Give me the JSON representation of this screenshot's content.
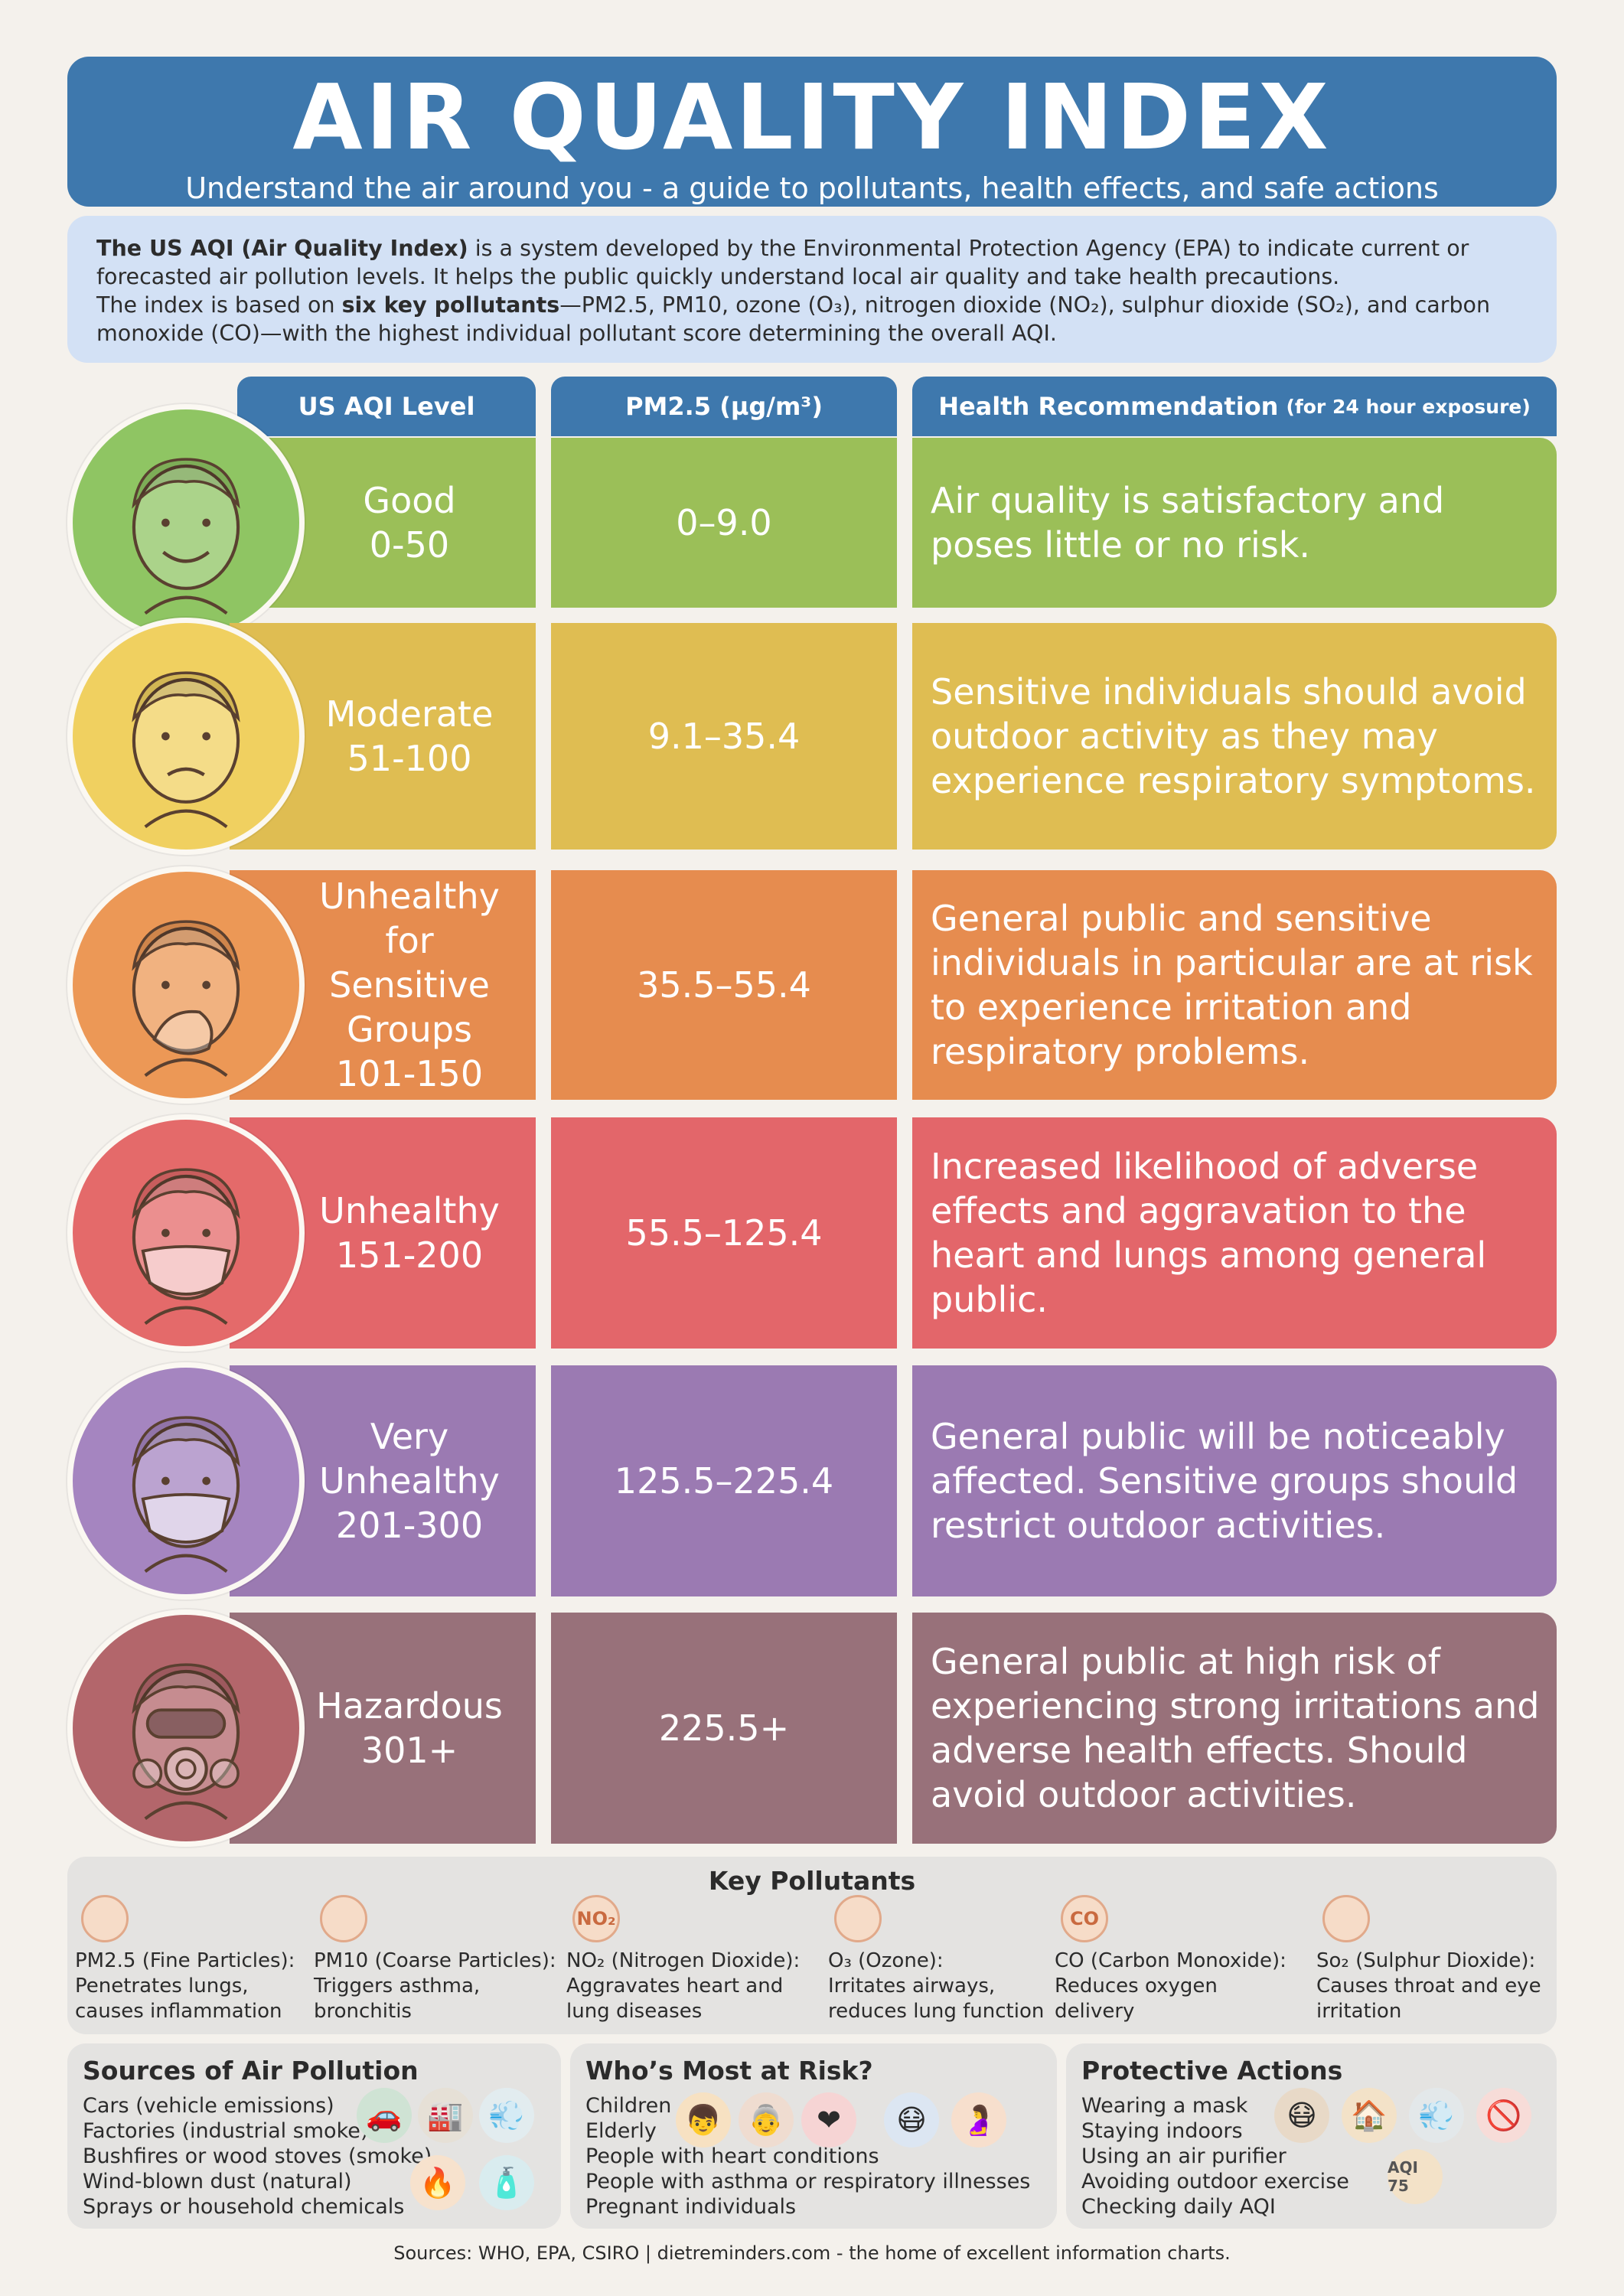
{
  "header": {
    "title": "AIR QUALITY INDEX",
    "subtitle": "Understand the air around you - a guide to pollutants, health effects, and safe actions"
  },
  "intro": {
    "bold1": "The US AQI (Air Quality Index)",
    "text1": " is a system developed by the Environmental Protection Agency (EPA) to indicate current or forecasted air pollution levels. It helps the public quickly understand local air quality and take health precautions.",
    "text2": "The index is based on ",
    "bold2": "six key pollutants",
    "text3": "—PM2.5, PM10, ozone (O₃), nitrogen dioxide (NO₂), sulphur dioxide (SO₂), and carbon monoxide (CO)—with the highest individual pollutant score determining the overall AQI."
  },
  "table": {
    "col_level": "US AQI Level",
    "col_pm": "PM2.5 (µg/m³)",
    "col_rec": "Health Recommendation",
    "col_rec_note": "(for 24 hour exposure)",
    "rows": [
      {
        "level": "Good",
        "range": "0-50",
        "pm": "0–9.0",
        "rec": "Air quality is satisfactory and poses little or no risk.",
        "color": "#9bbf58",
        "face": "happy-face-icon"
      },
      {
        "level": "Moderate",
        "range": "51-100",
        "pm": "9.1–35.4",
        "rec": "Sensitive individuals should avoid outdoor activity as they may experience respiratory symptoms.",
        "color": "#dfbd52",
        "face": "worried-face-icon"
      },
      {
        "level": "Unhealthy for Sensitive Groups",
        "range": "101-150",
        "pm": "35.5–55.4",
        "rec": "General public and sensitive individuals in particular are at risk to experience irritation and respiratory problems.",
        "color": "#e68c4f",
        "face": "coughing-face-icon"
      },
      {
        "level": "Unhealthy",
        "range": "151-200",
        "pm": "55.5–125.4",
        "rec": "Increased likelihood of adverse effects and aggravation to the heart and lungs among general public.",
        "color": "#e3666a",
        "face": "masked-face-icon"
      },
      {
        "level": "Very Unhealthy",
        "range": "201-300",
        "pm": "125.5–225.4",
        "rec": "General public will be noticeably affected. Sensitive groups should restrict outdoor activities.",
        "color": "#9b7ab2",
        "face": "respirator-face-icon"
      },
      {
        "level": "Hazardous",
        "range": "301+",
        "pm": "225.5+",
        "rec": "General public at high risk of experiencing strong irritations and adverse health effects. Should avoid outdoor activities.",
        "color": "#98717a",
        "face": "gas-mask-face-icon"
      }
    ]
  },
  "pollutants": {
    "title": "Key Pollutants",
    "items": [
      {
        "icon": "",
        "name": "PM2.5 (Fine Particles):",
        "desc": "Penetrates lungs, causes inflammation"
      },
      {
        "icon": "",
        "name": "PM10 (Coarse Particles):",
        "desc": "Triggers asthma, bronchitis"
      },
      {
        "icon": "NO₂",
        "name": "NO₂ (Nitrogen Dioxide):",
        "desc": "Aggravates heart and lung diseases"
      },
      {
        "icon": "",
        "name": "O₃ (Ozone):",
        "desc": "Irritates airways, reduces lung function"
      },
      {
        "icon": "CO",
        "name": "CO (Carbon Monoxide):",
        "desc": "Reduces oxygen delivery"
      },
      {
        "icon": "",
        "name": "So₂ (Sulphur Dioxide):",
        "desc": "Causes throat and eye irritation"
      }
    ]
  },
  "sources": {
    "title": "Sources of Air Pollution",
    "items": [
      "Cars (vehicle emissions)",
      "Factories (industrial smoke)",
      "Bushfires or wood stoves (smoke)",
      "Wind-blown dust (natural)",
      "Sprays or household chemicals"
    ]
  },
  "risk": {
    "title": "Who’s Most at Risk?",
    "items": [
      "Children",
      "Elderly",
      "People with heart conditions",
      "People with asthma or respiratory illnesses",
      "Pregnant individuals"
    ]
  },
  "actions": {
    "title": "Protective Actions",
    "items": [
      "Wearing a mask",
      "Staying indoors",
      "Using an air purifier",
      "Avoiding outdoor exercise",
      "Checking daily AQI"
    ],
    "phone_label": "AQI 75"
  },
  "footer": "Sources: WHO, EPA, CSIRO | dietreminders.com - the home of excellent information charts."
}
